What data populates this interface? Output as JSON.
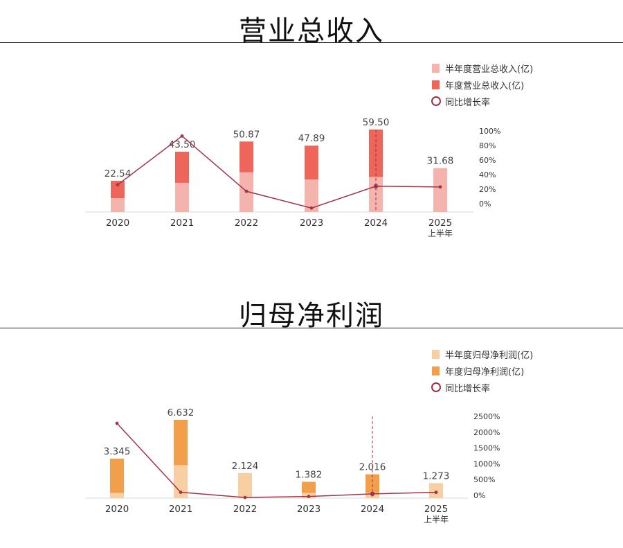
{
  "charts": [
    {
      "title": "营业总收入",
      "legend": {
        "half": "半年度营业总收入(亿)",
        "annual": "年度营业总收入(亿)",
        "growth": "同比增长率"
      },
      "colors": {
        "half": "#f4b3ad",
        "annual": "#ee6559",
        "line": "#a33349"
      }
    },
    {
      "title": "归母净利润",
      "legend": {
        "half": "半年度归母净利润(亿)",
        "annual": "年度归母净利润(亿)",
        "growth": "同比增长率"
      },
      "colors": {
        "half": "#f7cfa3",
        "annual": "#f29f4c",
        "line": "#a33349"
      }
    }
  ],
  "chart_data": [
    {
      "type": "bar",
      "title": "营业总收入",
      "categories": [
        "2020",
        "2021",
        "2022",
        "2023",
        "2024",
        "2025"
      ],
      "category_sublabels": [
        "",
        "",
        "",
        "",
        "",
        "上半年"
      ],
      "series": [
        {
          "name": "半年度营业总收入(亿)",
          "values": [
            10.0,
            21.1,
            28.7,
            23.5,
            25.3,
            31.68
          ]
        },
        {
          "name": "年度营业总收入(亿)",
          "values": [
            22.54,
            43.5,
            50.87,
            47.89,
            59.5,
            null
          ]
        },
        {
          "name": "同比增长率",
          "values": [
            26,
            93,
            17,
            -6,
            24,
            23
          ]
        }
      ],
      "data_labels": [
        "22.54",
        "43.50",
        "50.87",
        "47.89",
        "59.50",
        "31.68"
      ],
      "left_axis_max": 59.5,
      "right_axis": {
        "ticks": [
          "100%",
          "80%",
          "60%",
          "40%",
          "20%",
          "0%"
        ],
        "min": 0,
        "max": 100
      },
      "highlight_category": "2024"
    },
    {
      "type": "bar",
      "title": "归母净利润",
      "categories": [
        "2020",
        "2021",
        "2022",
        "2023",
        "2024",
        "2025"
      ],
      "category_sublabels": [
        "",
        "",
        "",
        "",
        "",
        "上半年"
      ],
      "series": [
        {
          "name": "半年度归母净利润(亿)",
          "values": [
            0.45,
            2.8,
            2.124,
            0.45,
            0.45,
            1.273
          ]
        },
        {
          "name": "年度归母净利润(亿)",
          "values": [
            3.345,
            6.632,
            null,
            1.382,
            2.016,
            null
          ]
        },
        {
          "name": "同比增长率",
          "values": [
            2280,
            98,
            -68,
            -35,
            46,
            95
          ]
        }
      ],
      "data_labels": [
        "3.345",
        "6.632",
        "2.124",
        "1.382",
        "2.016",
        "1.273"
      ],
      "left_axis_max": 6.632,
      "right_axis": {
        "ticks": [
          "2500%",
          "2000%",
          "1500%",
          "1000%",
          "500%",
          "0%"
        ],
        "min": 0,
        "max": 2500
      },
      "highlight_category": "2024"
    }
  ]
}
